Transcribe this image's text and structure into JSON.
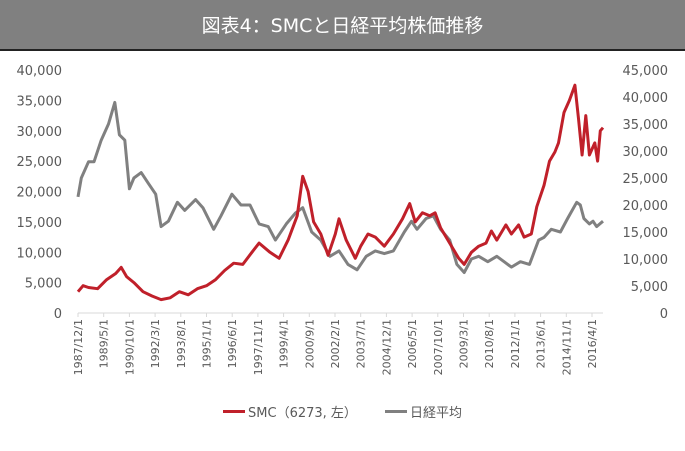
{
  "title": "図表4：SMCと日経平均株価推移",
  "chart_data": {
    "type": "line",
    "title": "図表4：SMCと日経平均株価推移",
    "x_tick_labels": [
      "1987/12/1",
      "1989/5/1",
      "1990/10/1",
      "1992/3/1",
      "1993/8/1",
      "1995/1/1",
      "1996/6/1",
      "1997/11/1",
      "1999/4/1",
      "2000/9/1",
      "2002/2/1",
      "2003/7/1",
      "2004/12/1",
      "2006/5/1",
      "2007/10/1",
      "2009/3/1",
      "2010/8/1",
      "2012/1/1",
      "2013/6/1",
      "2014/11/1",
      "2016/4/1"
    ],
    "xlim": [
      1987.92,
      2016.85
    ],
    "y_left": {
      "ylim": [
        0,
        40000
      ],
      "ticks": [
        "0",
        "5,000",
        "10,000",
        "15,000",
        "20,000",
        "25,000",
        "30,000",
        "35,000",
        "40,000"
      ]
    },
    "y_right": {
      "ylim": [
        0,
        45000
      ],
      "ticks": [
        "0",
        "5,000",
        "10,000",
        "15,000",
        "20,000",
        "25,000",
        "30,000",
        "35,000",
        "40,000",
        "45,000"
      ]
    },
    "grid": false,
    "legend_position": "bottom",
    "series": [
      {
        "name": "SMC（6273, 左）",
        "axis": "left",
        "color": "#c0202a",
        "points": [
          [
            1987.92,
            3500
          ],
          [
            1988.2,
            4500
          ],
          [
            1988.5,
            4200
          ],
          [
            1989,
            4000
          ],
          [
            1989.5,
            5500
          ],
          [
            1990,
            6500
          ],
          [
            1990.3,
            7500
          ],
          [
            1990.6,
            6000
          ],
          [
            1991,
            5000
          ],
          [
            1991.5,
            3500
          ],
          [
            1992,
            2800
          ],
          [
            1992.5,
            2200
          ],
          [
            1993,
            2500
          ],
          [
            1993.5,
            3500
          ],
          [
            1994,
            3000
          ],
          [
            1994.5,
            4000
          ],
          [
            1995,
            4500
          ],
          [
            1995.5,
            5500
          ],
          [
            1996,
            7000
          ],
          [
            1996.5,
            8200
          ],
          [
            1997,
            8000
          ],
          [
            1997.5,
            10000
          ],
          [
            1997.9,
            11500
          ],
          [
            1998.5,
            10000
          ],
          [
            1999,
            9000
          ],
          [
            1999.5,
            12000
          ],
          [
            2000,
            16000
          ],
          [
            2000.3,
            22500
          ],
          [
            2000.6,
            20000
          ],
          [
            2000.9,
            15000
          ],
          [
            2001.3,
            13000
          ],
          [
            2001.7,
            9500
          ],
          [
            2002.1,
            13000
          ],
          [
            2002.3,
            15500
          ],
          [
            2002.7,
            12000
          ],
          [
            2003.2,
            9000
          ],
          [
            2003.5,
            11000
          ],
          [
            2003.9,
            13000
          ],
          [
            2004.3,
            12500
          ],
          [
            2004.8,
            11000
          ],
          [
            2005.3,
            13000
          ],
          [
            2005.8,
            15500
          ],
          [
            2006.2,
            18000
          ],
          [
            2006.5,
            15000
          ],
          [
            2006.9,
            16500
          ],
          [
            2007.3,
            16000
          ],
          [
            2007.6,
            16500
          ],
          [
            2007.9,
            14000
          ],
          [
            2008.4,
            11500
          ],
          [
            2008.9,
            9000
          ],
          [
            2009.2,
            8000
          ],
          [
            2009.6,
            10000
          ],
          [
            2010,
            11000
          ],
          [
            2010.4,
            11500
          ],
          [
            2010.7,
            13500
          ],
          [
            2011,
            12000
          ],
          [
            2011.5,
            14500
          ],
          [
            2011.8,
            13000
          ],
          [
            2012.2,
            14500
          ],
          [
            2012.5,
            12500
          ],
          [
            2012.9,
            13000
          ],
          [
            2013.2,
            17500
          ],
          [
            2013.6,
            21000
          ],
          [
            2013.9,
            25000
          ],
          [
            2014.2,
            26500
          ],
          [
            2014.4,
            28000
          ],
          [
            2014.7,
            33000
          ],
          [
            2015,
            35000
          ],
          [
            2015.3,
            37500
          ],
          [
            2015.5,
            32000
          ],
          [
            2015.7,
            26000
          ],
          [
            2015.9,
            32500
          ],
          [
            2016.1,
            26000
          ],
          [
            2016.4,
            28000
          ],
          [
            2016.55,
            25000
          ],
          [
            2016.7,
            30000
          ],
          [
            2016.85,
            30500
          ]
        ]
      },
      {
        "name": "日経平均",
        "axis": "right",
        "color": "#808080",
        "points": [
          [
            1987.92,
            21500
          ],
          [
            1988.1,
            25000
          ],
          [
            1988.5,
            28000
          ],
          [
            1988.8,
            28000
          ],
          [
            1989.2,
            32000
          ],
          [
            1989.6,
            35000
          ],
          [
            1989.95,
            39000
          ],
          [
            1990.2,
            33000
          ],
          [
            1990.5,
            32000
          ],
          [
            1990.75,
            23000
          ],
          [
            1991,
            25000
          ],
          [
            1991.4,
            26000
          ],
          [
            1991.8,
            24000
          ],
          [
            1992.2,
            22000
          ],
          [
            1992.5,
            16000
          ],
          [
            1992.9,
            17000
          ],
          [
            1993.4,
            20500
          ],
          [
            1993.8,
            19000
          ],
          [
            1994.4,
            21000
          ],
          [
            1994.8,
            19500
          ],
          [
            1995.4,
            15500
          ],
          [
            1995.8,
            18000
          ],
          [
            1996.4,
            22000
          ],
          [
            1996.9,
            20000
          ],
          [
            1997.4,
            20000
          ],
          [
            1997.9,
            16500
          ],
          [
            1998.4,
            16000
          ],
          [
            1998.8,
            13500
          ],
          [
            1999.4,
            16500
          ],
          [
            1999.9,
            18500
          ],
          [
            2000.3,
            19500
          ],
          [
            2000.8,
            15000
          ],
          [
            2001.3,
            13500
          ],
          [
            2001.8,
            10500
          ],
          [
            2002.3,
            11500
          ],
          [
            2002.8,
            9000
          ],
          [
            2003.3,
            8000
          ],
          [
            2003.8,
            10500
          ],
          [
            2004.3,
            11500
          ],
          [
            2004.8,
            11000
          ],
          [
            2005.3,
            11500
          ],
          [
            2005.9,
            15000
          ],
          [
            2006.3,
            17000
          ],
          [
            2006.6,
            15500
          ],
          [
            2007.1,
            17500
          ],
          [
            2007.5,
            18000
          ],
          [
            2007.9,
            15500
          ],
          [
            2008.4,
            13500
          ],
          [
            2008.8,
            9000
          ],
          [
            2009.2,
            7500
          ],
          [
            2009.6,
            10000
          ],
          [
            2010,
            10500
          ],
          [
            2010.5,
            9500
          ],
          [
            2011,
            10500
          ],
          [
            2011.4,
            9500
          ],
          [
            2011.8,
            8500
          ],
          [
            2012.3,
            9500
          ],
          [
            2012.8,
            9000
          ],
          [
            2013.3,
            13500
          ],
          [
            2013.6,
            14000
          ],
          [
            2014,
            15500
          ],
          [
            2014.5,
            15000
          ],
          [
            2014.9,
            17500
          ],
          [
            2015.4,
            20500
          ],
          [
            2015.6,
            20000
          ],
          [
            2015.8,
            17500
          ],
          [
            2016.1,
            16500
          ],
          [
            2016.3,
            17000
          ],
          [
            2016.5,
            16000
          ],
          [
            2016.85,
            17000
          ]
        ]
      }
    ]
  }
}
